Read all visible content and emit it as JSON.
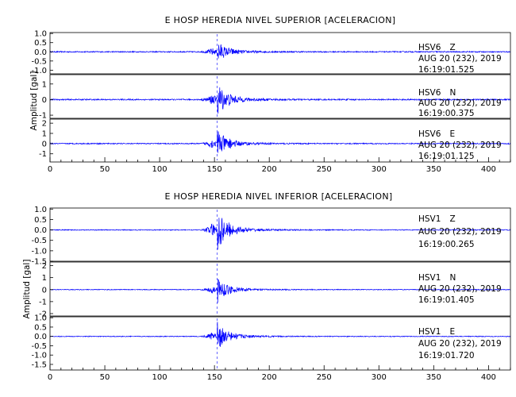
{
  "figure": {
    "ylabel": "Amplitud [gal]",
    "trace_color": "#0000ff"
  },
  "chart_data": [
    {
      "type": "line",
      "title": "E HOSP HEREDIA NIVEL SUPERIOR [ACELERACION]",
      "xlim": [
        0,
        420
      ],
      "xticks": [
        "0",
        "50",
        "100",
        "150",
        "200",
        "250",
        "300",
        "350",
        "400"
      ],
      "channels": [
        {
          "station": "HSV6",
          "component": "Z",
          "date": "AUG 20 (232), 2019",
          "time": "16:19:01.525",
          "ylim": [
            -1.2,
            1.05
          ],
          "yticks": [
            "1.0",
            "0.5",
            "0.0",
            "-0.5",
            "-1.0"
          ],
          "peak_time_s": 154,
          "peak_amplitude": 0.55,
          "noise_amplitude": 0.03
        },
        {
          "station": "HSV6",
          "component": "N",
          "date": "AUG 20 (232), 2019",
          "time": "16:19:00.375",
          "ylim": [
            -1.2,
            1.6
          ],
          "yticks": [
            "1",
            "0",
            "-1"
          ],
          "peak_time_s": 154,
          "peak_amplitude": 1.0,
          "noise_amplitude": 0.04
        },
        {
          "station": "HSV6",
          "component": "E",
          "date": "AUG 20 (232), 2019",
          "time": "16:19:01.125",
          "ylim": [
            -1.8,
            2.4
          ],
          "yticks": [
            "2",
            "1",
            "0",
            "-1"
          ],
          "peak_time_s": 154,
          "peak_amplitude": 1.3,
          "noise_amplitude": 0.05
        }
      ]
    },
    {
      "type": "line",
      "title": "E HOSP HEREDIA NIVEL INFERIOR [ACELERACION]",
      "xlim": [
        0,
        420
      ],
      "xticks": [
        "0",
        "50",
        "100",
        "150",
        "200",
        "250",
        "300",
        "350",
        "400"
      ],
      "channels": [
        {
          "station": "HSV1",
          "component": "Z",
          "date": "AUG 20 (232), 2019",
          "time": "16:19:00.265",
          "ylim": [
            -1.5,
            1.05
          ],
          "yticks": [
            "1.0",
            "0.5",
            "0.0",
            "-0.5",
            "-1.0",
            "-1.5"
          ],
          "peak_time_s": 154,
          "peak_amplitude": 0.95,
          "noise_amplitude": 0.02
        },
        {
          "station": "HSV1",
          "component": "N",
          "date": "AUG 20 (232), 2019",
          "time": "16:19:01.405",
          "ylim": [
            -2.2,
            2.3
          ],
          "yticks": [
            "2",
            "1",
            "0",
            "-1",
            "-2"
          ],
          "peak_time_s": 154,
          "peak_amplitude": 1.0,
          "noise_amplitude": 0.03
        },
        {
          "station": "HSV1",
          "component": "E",
          "date": "AUG 20 (232), 2019",
          "time": "16:19:01.720",
          "ylim": [
            -1.8,
            1.05
          ],
          "yticks": [
            "1.0",
            "0.5",
            "0.0",
            "-0.5",
            "-1.0",
            "-1.5"
          ],
          "peak_time_s": 154,
          "peak_amplitude": 0.7,
          "noise_amplitude": 0.02
        }
      ]
    }
  ]
}
